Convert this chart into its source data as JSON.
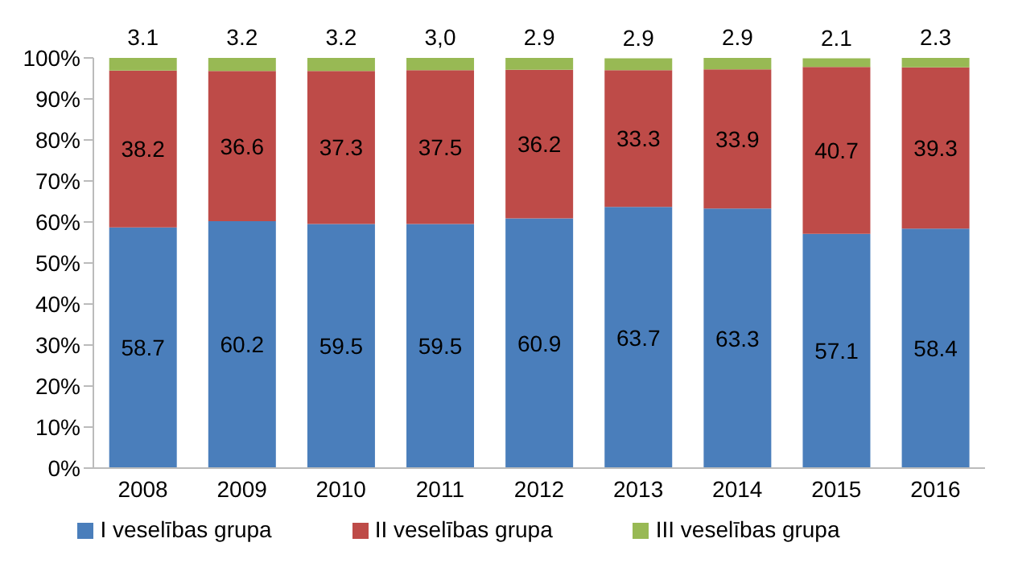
{
  "chart_data": {
    "type": "bar",
    "stacked": true,
    "categories": [
      "2008",
      "2009",
      "2010",
      "2011",
      "2012",
      "2013",
      "2014",
      "2015",
      "2016"
    ],
    "series": [
      {
        "name": "I veselības grupa",
        "color": "#4a7ebb",
        "values": [
          58.7,
          60.2,
          59.5,
          59.5,
          60.9,
          63.7,
          63.3,
          57.1,
          58.4
        ],
        "value_labels": [
          "58.7",
          "60.2",
          "59.5",
          "59.5",
          "60.9",
          "63.7",
          "63.3",
          "57.1",
          "58.4"
        ]
      },
      {
        "name": "II veselības grupa",
        "color": "#be4b48",
        "values": [
          38.2,
          36.6,
          37.3,
          37.5,
          36.2,
          33.3,
          33.9,
          40.7,
          39.3
        ],
        "value_labels": [
          "38.2",
          "36.6",
          "37.3",
          "37.5",
          "36.2",
          "33.3",
          "33.9",
          "40.7",
          "39.3"
        ]
      },
      {
        "name": "III veselības grupa",
        "color": "#98b954",
        "values": [
          3.1,
          3.2,
          3.2,
          3.0,
          2.9,
          2.9,
          2.9,
          2.1,
          2.3
        ],
        "value_labels": [
          "3.1",
          "3.2",
          "3.2",
          "3,0",
          "2.9",
          "2.9",
          "2.9",
          "2.1",
          "2.3"
        ]
      }
    ],
    "ylim": [
      0,
      100
    ],
    "yticks": [
      {
        "value": 0,
        "label": "0%"
      },
      {
        "value": 10,
        "label": "10%"
      },
      {
        "value": 20,
        "label": "20%"
      },
      {
        "value": 30,
        "label": "30%"
      },
      {
        "value": 40,
        "label": "40%"
      },
      {
        "value": 50,
        "label": "50%"
      },
      {
        "value": 60,
        "label": "60%"
      },
      {
        "value": 70,
        "label": "70%"
      },
      {
        "value": 80,
        "label": "80%"
      },
      {
        "value": 90,
        "label": "90%"
      },
      {
        "value": 100,
        "label": "100%"
      }
    ],
    "grid": false,
    "legend": "bottom"
  }
}
